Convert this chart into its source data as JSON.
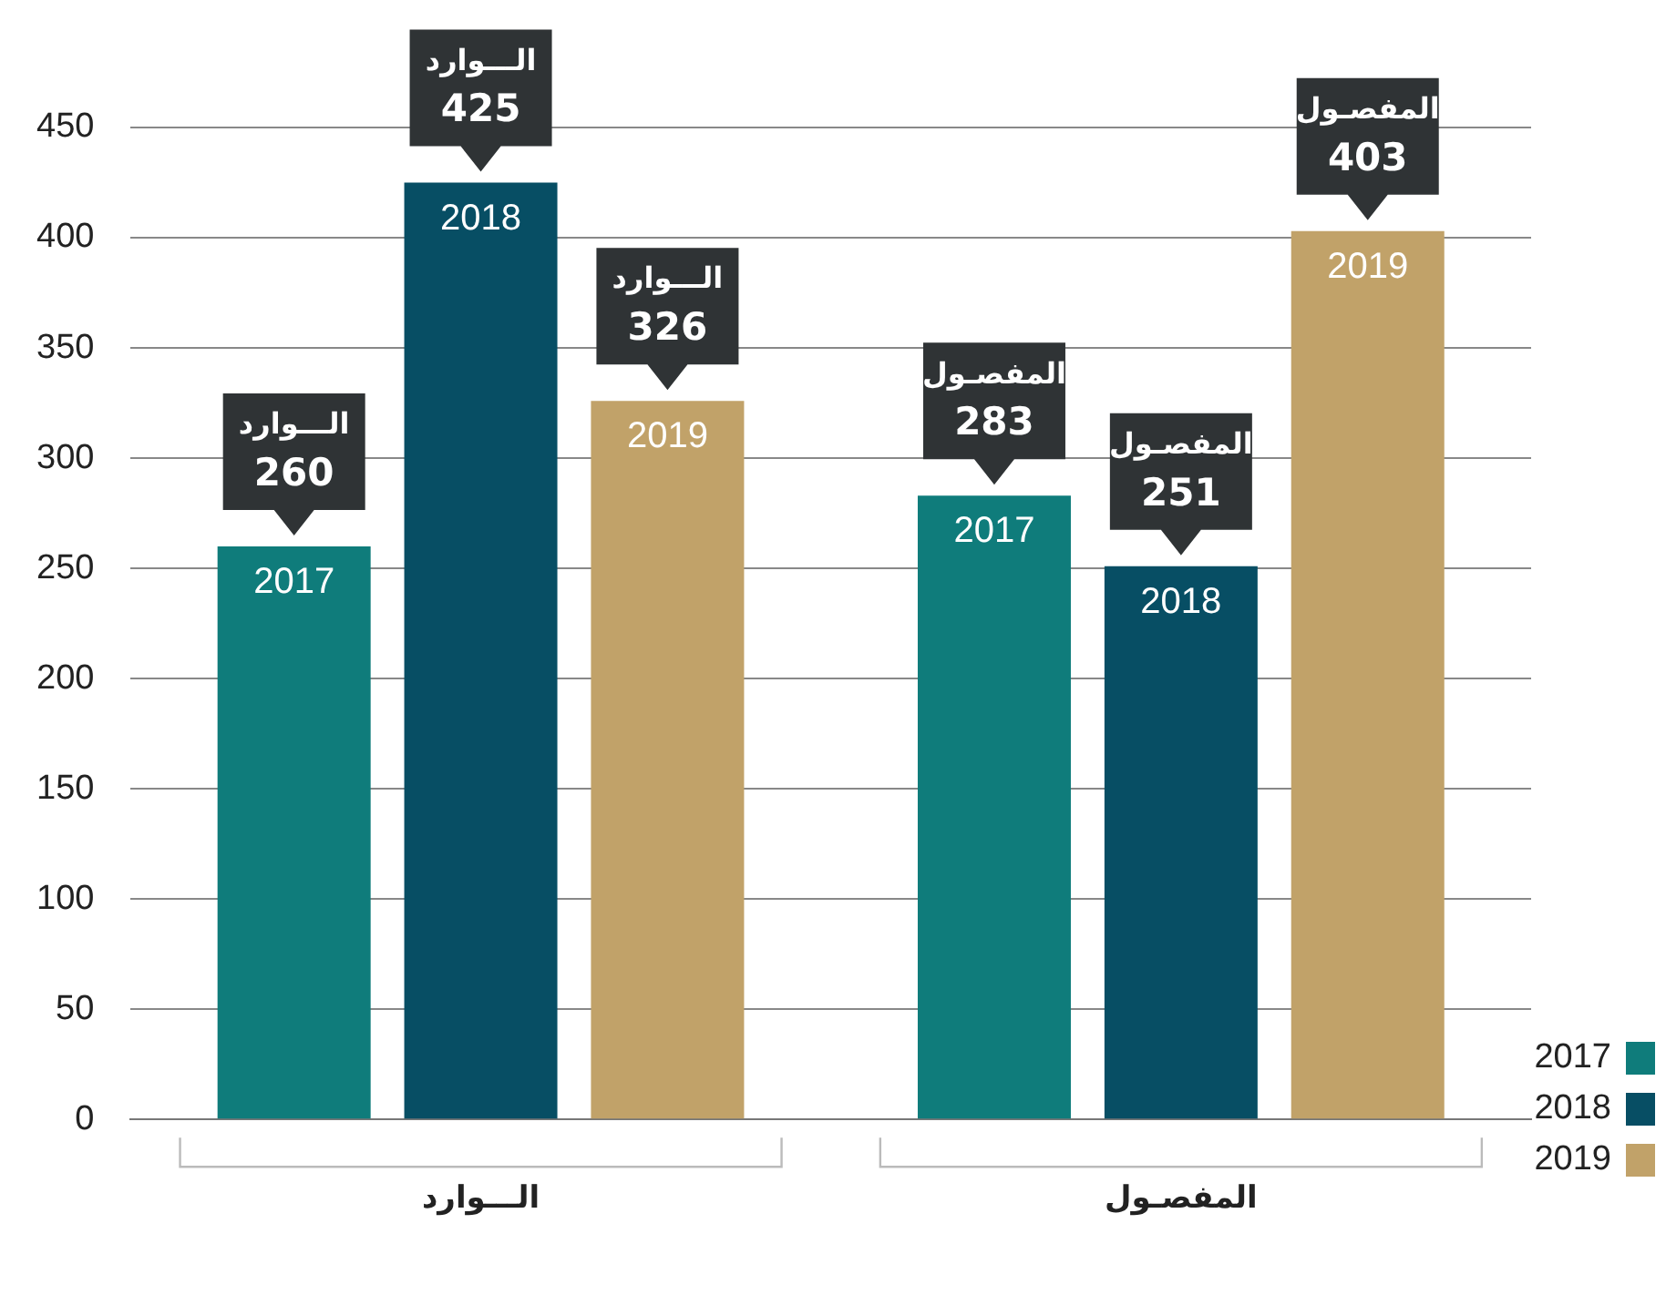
{
  "chart_data": {
    "type": "bar",
    "categories": [
      "الـــوارد",
      "المفصـول"
    ],
    "series": [
      {
        "name": "2017",
        "color": "#0f7c7b",
        "values": [
          260,
          283
        ]
      },
      {
        "name": "2018",
        "color": "#074e64",
        "values": [
          425,
          251
        ]
      },
      {
        "name": "2019",
        "color": "#c1a269",
        "values": [
          326,
          403
        ]
      }
    ],
    "ylim": [
      0,
      450
    ],
    "yticks": [
      0,
      50,
      100,
      150,
      200,
      250,
      300,
      350,
      400,
      450
    ],
    "grid": "y",
    "legend": "bottom right",
    "data_labels": true
  }
}
